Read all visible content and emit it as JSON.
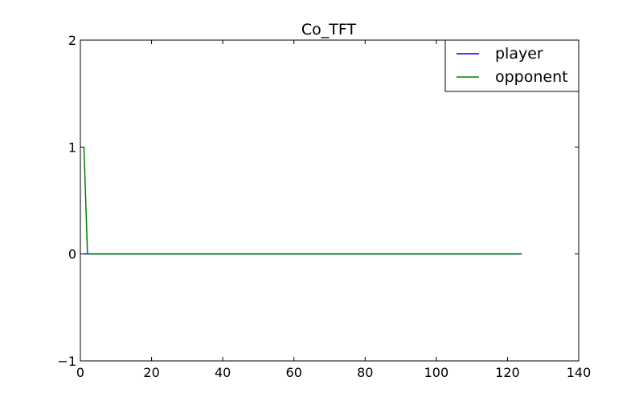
{
  "chart_data": {
    "type": "line",
    "title": "Co_TFT",
    "xlabel": "",
    "ylabel": "",
    "xlim": [
      0,
      140
    ],
    "ylim": [
      -1,
      2
    ],
    "xticks": [
      0,
      20,
      40,
      60,
      80,
      100,
      120,
      140
    ],
    "yticks": [
      -1,
      0,
      1,
      2
    ],
    "xtick_labels": [
      "0",
      "20",
      "40",
      "60",
      "80",
      "100",
      "120",
      "140"
    ],
    "ytick_labels": [
      "−1",
      "0",
      "1",
      "2"
    ],
    "grid": false,
    "legend_position": "top-right",
    "series": [
      {
        "name": "player",
        "color": "#0000ff",
        "x": [
          1,
          124
        ],
        "y": [
          0,
          0
        ]
      },
      {
        "name": "opponent",
        "color": "#008000",
        "x": [
          1,
          2,
          124
        ],
        "y": [
          1,
          0,
          0
        ]
      }
    ]
  }
}
